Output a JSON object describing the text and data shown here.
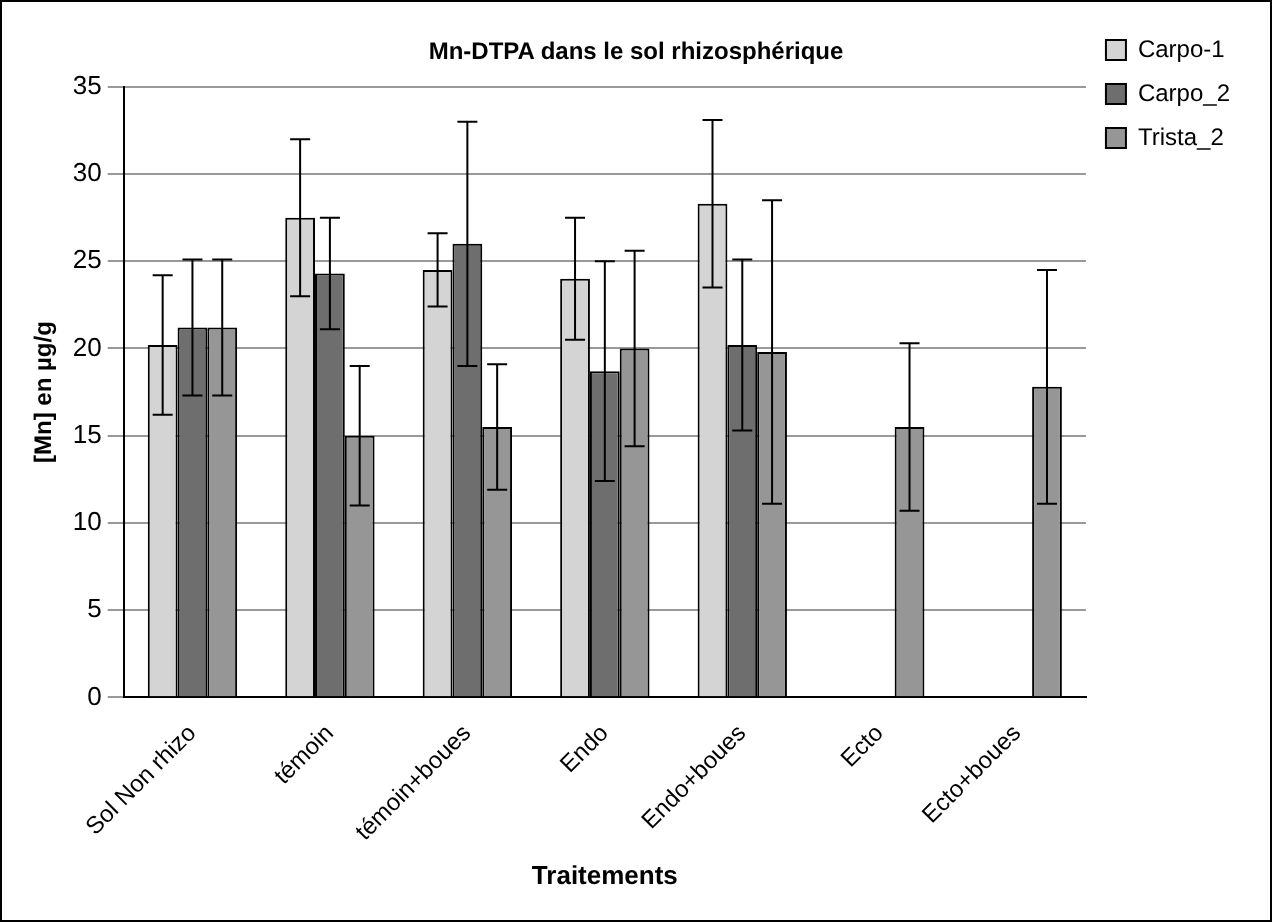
{
  "chart_data": {
    "type": "bar",
    "title": "Mn-DTPA dans le sol rhizosphérique",
    "xlabel": "Traitements",
    "ylabel": "[Mn] en µg/g",
    "categories": [
      "Sol Non rhizo",
      "témoin",
      "témoin+boues",
      "Endo",
      "Endo+boues",
      "Ecto",
      "Ecto+boues"
    ],
    "series": [
      {
        "name": "Carpo-1",
        "color": "#d4d4d4",
        "values": [
          20.2,
          27.5,
          24.5,
          24,
          28.3,
          null,
          null
        ],
        "errors": [
          4,
          4.5,
          2.1,
          3.5,
          4.8,
          null,
          null
        ]
      },
      {
        "name": "Carpo_2",
        "color": "#6e6e6e",
        "values": [
          21.2,
          24.3,
          26,
          18.7,
          20.2,
          null,
          null
        ],
        "errors": [
          3.9,
          3.2,
          7,
          6.3,
          4.9,
          null,
          null
        ]
      },
      {
        "name": "Trista_2",
        "color": "#969696",
        "values": [
          21.2,
          15,
          15.5,
          20,
          19.8,
          15.5,
          17.8
        ],
        "errors": [
          3.9,
          4,
          3.6,
          5.6,
          8.7,
          4.8,
          6.7
        ]
      }
    ],
    "ylim": [
      0,
      35
    ],
    "yticks": [
      0,
      5,
      10,
      15,
      20,
      25,
      30,
      35
    ],
    "grid": "y",
    "legend": "top right"
  }
}
